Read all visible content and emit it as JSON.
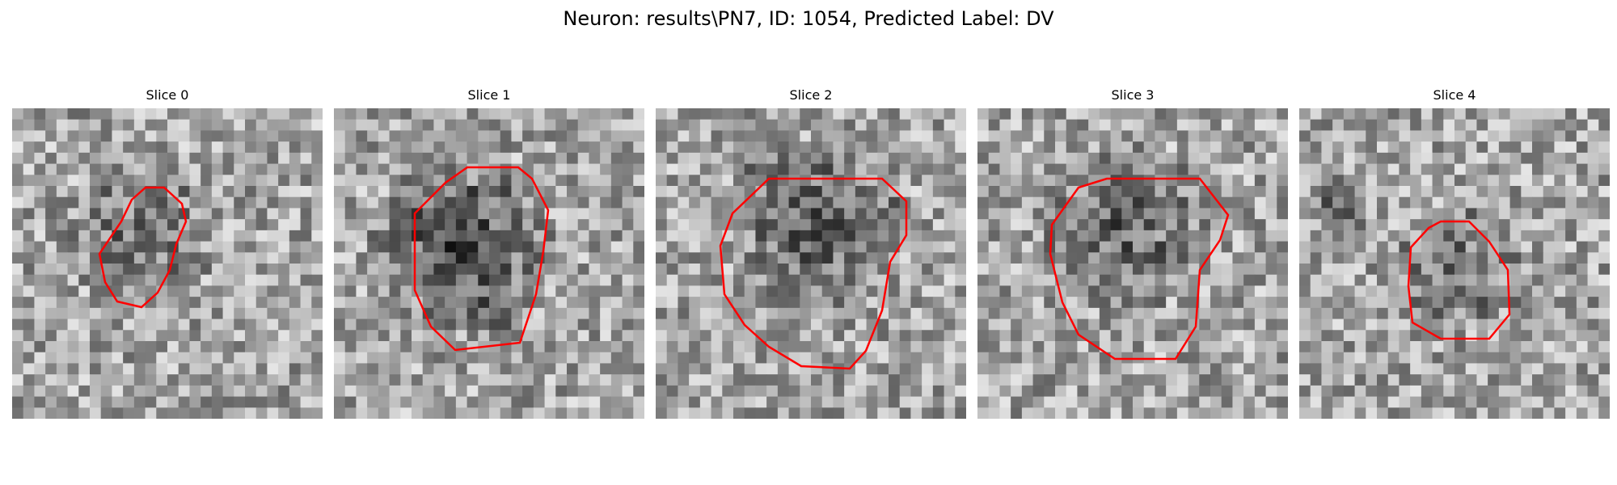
{
  "figure": {
    "title": "Neuron: results\\PN7, ID: 1054, Predicted Label: DV"
  },
  "panels": [
    {
      "title": "Slice 0"
    },
    {
      "title": "Slice 1"
    },
    {
      "title": "Slice 2"
    },
    {
      "title": "Slice 3"
    },
    {
      "title": "Slice 4"
    }
  ],
  "colors": {
    "contour": "#ff0000"
  }
}
